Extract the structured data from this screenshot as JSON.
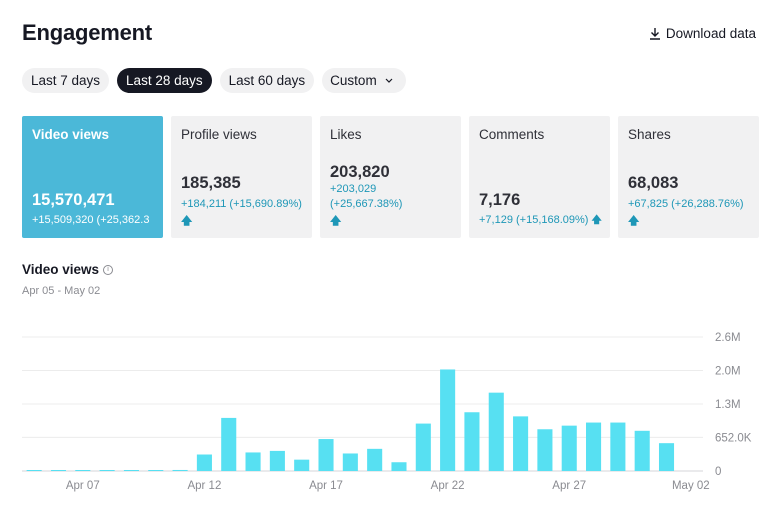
{
  "header": {
    "title": "Engagement",
    "download_label": "Download data"
  },
  "date_ranges": [
    {
      "label": "Last 7 days",
      "active": false
    },
    {
      "label": "Last 28 days",
      "active": true
    },
    {
      "label": "Last 60 days",
      "active": false
    },
    {
      "label": "Custom",
      "active": false
    }
  ],
  "metrics": [
    {
      "label": "Video views",
      "value": "15,570,471",
      "delta": "+15,509,320 (+25,362.3",
      "active": true
    },
    {
      "label": "Profile views",
      "value": "185,385",
      "delta": "+184,211 (+15,690.89%)"
    },
    {
      "label": "Likes",
      "value": "203,820",
      "delta_line1": "+203,029",
      "delta_line2": "(+25,667.38%)"
    },
    {
      "label": "Comments",
      "value": "7,176",
      "delta": "+7,129 (+15,168.09%)"
    },
    {
      "label": "Shares",
      "value": "68,083",
      "delta": "+67,825 (+26,288.76%)"
    }
  ],
  "section": {
    "title": "Video views",
    "date_range": "Apr 05 - May 02",
    "info_glyph": "i"
  },
  "colors": {
    "accent": "#4bb8d8",
    "bar": "#57e0f2",
    "positive": "#1e97b7"
  },
  "chart_data": {
    "type": "bar",
    "categories": [
      "Apr 05",
      "Apr 06",
      "Apr 07",
      "Apr 08",
      "Apr 09",
      "Apr 10",
      "Apr 11",
      "Apr 12",
      "Apr 13",
      "Apr 14",
      "Apr 15",
      "Apr 16",
      "Apr 17",
      "Apr 18",
      "Apr 19",
      "Apr 20",
      "Apr 21",
      "Apr 22",
      "Apr 23",
      "Apr 24",
      "Apr 25",
      "Apr 26",
      "Apr 27",
      "Apr 28",
      "Apr 29",
      "Apr 30",
      "May 01",
      "May 02"
    ],
    "values": [
      1000,
      5000,
      3000,
      8000,
      12000,
      15000,
      20000,
      320000,
      1030000,
      360000,
      390000,
      220000,
      620000,
      340000,
      430000,
      170000,
      920000,
      1970000,
      1140000,
      1520000,
      1060000,
      810000,
      880000,
      940000,
      940000,
      780000,
      540000,
      0
    ],
    "xticks": [
      "Apr 07",
      "Apr 12",
      "Apr 17",
      "Apr 22",
      "Apr 27",
      "May 02"
    ],
    "xtick_index": [
      2,
      7,
      12,
      17,
      22,
      27
    ],
    "yticks": [
      "2.6M",
      "2.0M",
      "1.3M",
      "652.0K",
      "0"
    ],
    "ytick_values": [
      2600000,
      1950000,
      1300000,
      652000,
      0
    ],
    "ylim": [
      0,
      2600000
    ],
    "grid": true
  }
}
